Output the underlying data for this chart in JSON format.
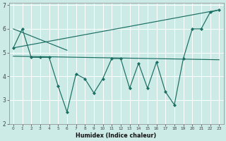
{
  "xlabel": "Humidex (Indice chaleur)",
  "x_data": [
    0,
    1,
    2,
    3,
    4,
    5,
    6,
    7,
    8,
    9,
    10,
    11,
    12,
    13,
    14,
    15,
    16,
    17,
    18,
    19,
    20,
    21,
    22,
    23
  ],
  "y_main": [
    5.2,
    6.0,
    4.8,
    4.8,
    4.8,
    3.6,
    2.5,
    4.1,
    3.9,
    3.3,
    3.9,
    4.75,
    4.75,
    3.5,
    4.55,
    3.5,
    4.6,
    3.35,
    2.8,
    4.75,
    6.0,
    6.0,
    6.7,
    6.8
  ],
  "line1_x": [
    0,
    23
  ],
  "line1_y": [
    5.2,
    6.8
  ],
  "line2_x": [
    0,
    6
  ],
  "line2_y": [
    6.0,
    5.1
  ],
  "line3_x": [
    0,
    23
  ],
  "line3_y": [
    4.85,
    4.7
  ],
  "ylim": [
    2.0,
    7.1
  ],
  "xlim": [
    -0.5,
    23.5
  ],
  "yticks": [
    2,
    3,
    4,
    5,
    6,
    7
  ],
  "bg_color": "#cceae6",
  "line_color": "#1a6e62",
  "grid_color": "#b0d8d4",
  "grid_color_minor": "#d8f0ee"
}
